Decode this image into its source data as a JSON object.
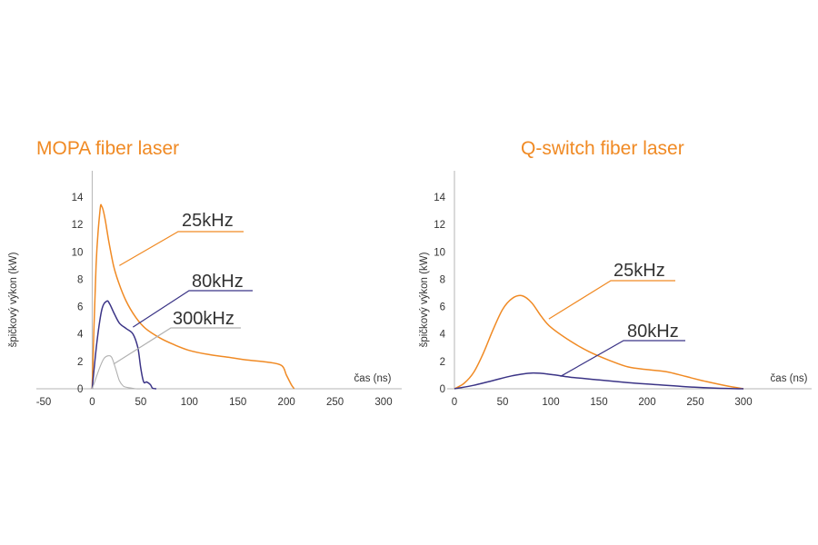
{
  "chart_data": [
    {
      "type": "line",
      "title": "MOPA fiber laser",
      "xlabel": "čas (ns)",
      "ylabel": "špičkový výkon (kW)",
      "xlim": [
        -50,
        300
      ],
      "ylim": [
        0,
        14
      ],
      "xticks": [
        -50,
        0,
        50,
        100,
        150,
        200,
        250,
        300
      ],
      "yticks": [
        0,
        2,
        4,
        6,
        8,
        10,
        12,
        14
      ],
      "grid": false,
      "colors": {
        "25kHz": "#f08a24",
        "80kHz": "#3b3486",
        "300kHz": "#b0b0b0"
      },
      "series": [
        {
          "name": "25kHz",
          "x": [
            0,
            4,
            8,
            10,
            13,
            17,
            22,
            27,
            35,
            45,
            55,
            70,
            85,
            100,
            120,
            140,
            160,
            180,
            195,
            200,
            205,
            208
          ],
          "y": [
            0,
            9,
            13.0,
            13.3,
            12.5,
            10.8,
            9.0,
            7.8,
            6.4,
            5.2,
            4.4,
            3.7,
            3.2,
            2.8,
            2.5,
            2.3,
            2.1,
            1.95,
            1.7,
            1.0,
            0.3,
            0
          ]
        },
        {
          "name": "80kHz",
          "x": [
            0,
            5,
            10,
            15,
            18,
            22,
            28,
            35,
            42,
            47,
            50,
            53,
            56,
            60,
            62,
            66
          ],
          "y": [
            0,
            3.5,
            5.8,
            6.4,
            6.2,
            5.6,
            4.8,
            4.4,
            4.0,
            3.0,
            1.5,
            0.5,
            0.5,
            0.3,
            0.05,
            0
          ]
        },
        {
          "name": "300kHz",
          "x": [
            0,
            4,
            8,
            12,
            16,
            20,
            24,
            28,
            32,
            36,
            40,
            45,
            50
          ],
          "y": [
            0,
            0.8,
            1.6,
            2.2,
            2.4,
            2.3,
            1.5,
            0.6,
            0.2,
            0.1,
            0.05,
            0,
            0
          ]
        }
      ],
      "annotations": [
        {
          "text": "25kHz",
          "series": "25kHz",
          "anchor": [
            28,
            9.0
          ]
        },
        {
          "text": "80kHz",
          "series": "80kHz",
          "anchor": [
            42,
            4.5
          ]
        },
        {
          "text": "300kHz",
          "series": "300kHz",
          "anchor": [
            22,
            1.8
          ]
        }
      ]
    },
    {
      "type": "line",
      "title": "Q-switch fiber laser",
      "xlabel": "čas (ns)",
      "ylabel": "špičkový výkon (kW)",
      "xlim": [
        0,
        300
      ],
      "ylim": [
        0,
        14
      ],
      "xticks": [
        0,
        50,
        100,
        150,
        200,
        250,
        300
      ],
      "yticks": [
        0,
        2,
        4,
        6,
        8,
        10,
        12,
        14
      ],
      "grid": false,
      "colors": {
        "25kHz": "#f08a24",
        "80kHz": "#3b3486"
      },
      "series": [
        {
          "name": "25kHz",
          "x": [
            0,
            10,
            20,
            30,
            40,
            50,
            60,
            70,
            80,
            90,
            100,
            120,
            140,
            160,
            180,
            200,
            220,
            240,
            260,
            280,
            300
          ],
          "y": [
            0,
            0.4,
            1.2,
            2.6,
            4.3,
            5.8,
            6.6,
            6.8,
            6.3,
            5.3,
            4.5,
            3.5,
            2.7,
            2.1,
            1.6,
            1.4,
            1.25,
            0.9,
            0.55,
            0.25,
            0
          ]
        },
        {
          "name": "80kHz",
          "x": [
            0,
            20,
            40,
            60,
            80,
            100,
            120,
            150,
            180,
            210,
            240,
            270,
            300
          ],
          "y": [
            0,
            0.25,
            0.6,
            0.95,
            1.15,
            1.05,
            0.85,
            0.65,
            0.45,
            0.3,
            0.15,
            0.05,
            0
          ]
        }
      ],
      "annotations": [
        {
          "text": "25kHz",
          "series": "25kHz",
          "anchor": [
            98,
            5.1
          ]
        },
        {
          "text": "80kHz",
          "series": "80kHz",
          "anchor": [
            110,
            0.9
          ]
        }
      ]
    }
  ]
}
